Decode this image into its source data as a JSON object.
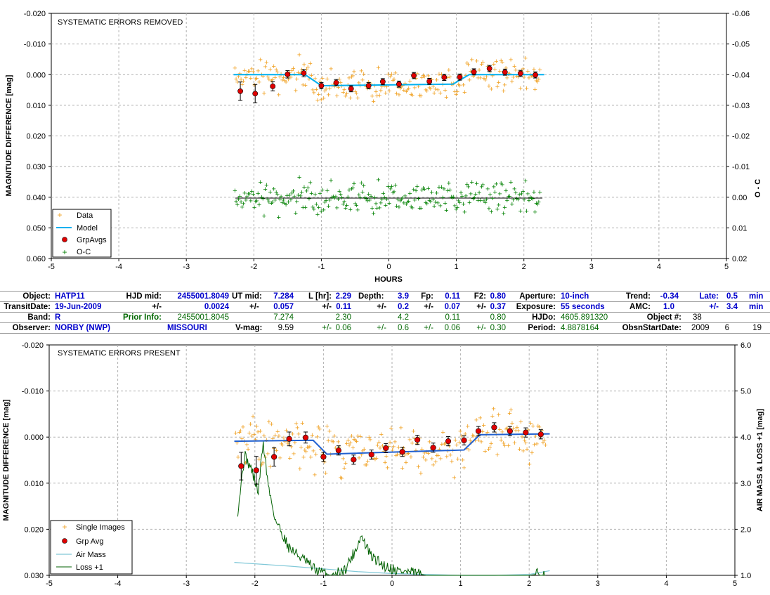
{
  "top_chart": {
    "inner_title": "SYSTEMATIC ERRORS REMOVED",
    "ylabel": "MAGNITUDE DIFFERENCE [mag]",
    "y2label": "O - C",
    "xlabel": "HOURS",
    "y_ticks": [
      "-0.020",
      "-0.010",
      "0.000",
      "0.010",
      "0.020",
      "0.030",
      "0.040",
      "0.050",
      "0.060"
    ],
    "y2_ticks": [
      "-0.06",
      "-0.05",
      "-0.04",
      "-0.03",
      "-0.02",
      "-0.01",
      "0.00",
      "0.01",
      "0.02"
    ],
    "x_ticks": [
      "-5",
      "-4",
      "-3",
      "-2",
      "-1",
      "0",
      "1",
      "2",
      "3",
      "4",
      "5"
    ],
    "legend": [
      "Data",
      "Model",
      "GrpAvgs",
      "O-C"
    ]
  },
  "bottom_chart": {
    "inner_title": "SYSTEMATIC ERRORS PRESENT",
    "ylabel": "MAGNITUDE DIFFERENCE [mag]",
    "y2label": "AIR MASS & LOSS +1 [mag]",
    "y_ticks": [
      "-0.020",
      "-0.010",
      "0.000",
      "0.010",
      "0.020",
      "0.030"
    ],
    "y2_ticks": [
      "6.0",
      "5.0",
      "4.0",
      "3.0",
      "2.0",
      "1.0"
    ],
    "x_ticks": [
      "-5",
      "-4",
      "-3",
      "-2",
      "-1",
      "0",
      "1",
      "2",
      "3",
      "4",
      "5"
    ],
    "legend": [
      "Single Images",
      "Grp Avg",
      "Air Mass",
      "Loss +1"
    ]
  },
  "info": {
    "object_k": "Object:",
    "object_v": "HATP11",
    "hjdmid_k": "HJD mid:",
    "hjdmid_v": "2455001.8049",
    "utmid_k": "UT mid:",
    "utmid_v": "7.284",
    "lhr_k": "L [hr]:",
    "lhr_v": "2.29",
    "depth_k": "Depth:",
    "depth_v": "3.9",
    "fp_k": "Fp:",
    "fp_v": "0.11",
    "f2_k": "F2:",
    "f2_v": "0.80",
    "aperture_k": "Aperture:",
    "aperture_v": "10-inch",
    "trend_k": "Trend:",
    "trend_v": "-0.34",
    "late_k": "Late:",
    "late_v": "0.5",
    "late_u": "min",
    "transit_k": "TransitDate:",
    "transit_v": "19-Jun-2009",
    "pm1": "+/-",
    "hjd_err": "0.0024",
    "pm2": "+/-",
    "ut_err": "0.057",
    "pm3": "+/-",
    "l_err": "0.11",
    "pm4": "+/-",
    "depth_err": "0.2",
    "pm5": "+/-",
    "fp_err": "0.07",
    "pm6": "+/-",
    "f2_err": "0.37",
    "exposure_k": "Exposure:",
    "exposure_v": "55 seconds",
    "amc_k": "AMC:",
    "amc_v": "1.0",
    "pm7": "+/-",
    "amc_err": "3.4",
    "amc_u": "min",
    "band_k": "Band:",
    "band_v": "R",
    "prior_k": "Prior Info:",
    "prior_hjd": "2455001.8045",
    "prior_ut": "7.274",
    "prior_l": "2.30",
    "prior_depth": "4.2",
    "prior_fp": "0.11",
    "prior_f2": "0.80",
    "hjdo_k": "HJDo:",
    "hjdo_v": "4605.891320",
    "objnum_k": "Object #:",
    "objnum_v": "38",
    "observer_k": "Observer:",
    "observer_v": "NORBY (NWP)",
    "location_v": "MISSOURI",
    "vmag_k": "V-mag:",
    "vmag_v": "9.59",
    "pm8": "+/-",
    "vmag_err": "0.06",
    "pm9": "+/-",
    "depth_err2": "0.6",
    "pm10": "+/-",
    "fp_err2": "0.06",
    "pm11": "+/-",
    "f2_err2": "0.30",
    "period_k": "Period:",
    "period_v": "4.8878164",
    "obsstart_k": "ObsnStartDate:",
    "obs_y": "2009",
    "obs_m": "6",
    "obs_d": "19"
  },
  "colors": {
    "data": "#f0a020",
    "model_top": "#00b0f0",
    "model_bottom": "#2060d0",
    "grp": "#e00000",
    "oc": "#008000",
    "airmass": "#80c8d8",
    "loss": "#006000",
    "grid": "#b0b0b0"
  },
  "chart_data": [
    {
      "type": "scatter",
      "title": "SYSTEMATIC ERRORS REMOVED",
      "xlabel": "HOURS",
      "ylabel": "MAGNITUDE DIFFERENCE [mag]",
      "y2label": "O - C",
      "xlim": [
        -5,
        5
      ],
      "ylim": [
        -0.02,
        0.06
      ],
      "y2lim": [
        -0.06,
        0.02
      ],
      "y_inverted": true,
      "grid": true,
      "legend_position": "bottom-left",
      "series": [
        {
          "name": "GrpAvgs",
          "x": [
            -2.2,
            -1.98,
            -1.72,
            -1.5,
            -1.26,
            -1.0,
            -0.78,
            -0.56,
            -0.3,
            -0.09,
            0.15,
            0.37,
            0.6,
            0.82,
            1.05,
            1.26,
            1.49,
            1.72,
            1.95,
            2.17
          ],
          "y": [
            0.0054,
            0.0062,
            0.0038,
            -0.0001,
            -0.0005,
            0.0036,
            0.0026,
            0.0046,
            0.0036,
            0.0023,
            0.0031,
            0.0003,
            0.0022,
            0.0009,
            0.0008,
            -0.0009,
            -0.002,
            -0.0008,
            -0.0004,
            0.0001
          ],
          "yerr": [
            0.003,
            0.003,
            0.0015,
            0.0012,
            0.0012,
            0.001,
            0.001,
            0.001,
            0.001,
            0.001,
            0.001,
            0.001,
            0.001,
            0.001,
            0.001,
            0.001,
            0.001,
            0.001,
            0.001,
            0.001
          ]
        },
        {
          "name": "Model",
          "x": [
            -2.3,
            -1.24,
            -1.0,
            0.95,
            1.19,
            2.3
          ],
          "y": [
            0.0,
            0.0,
            0.0036,
            0.0031,
            0.0,
            0.0
          ]
        }
      ]
    },
    {
      "type": "scatter",
      "title": "SYSTEMATIC ERRORS PRESENT",
      "ylabel": "MAGNITUDE DIFFERENCE [mag]",
      "y2label": "AIR MASS & LOSS +1 [mag]",
      "xlim": [
        -5,
        5
      ],
      "ylim": [
        -0.02,
        0.03
      ],
      "y2lim": [
        1.0,
        6.0
      ],
      "y_inverted": true,
      "grid": true,
      "legend_position": "bottom-left",
      "series": [
        {
          "name": "Grp Avg",
          "x": [
            -2.2,
            -1.98,
            -1.72,
            -1.5,
            -1.26,
            -1.0,
            -0.78,
            -0.56,
            -0.3,
            -0.09,
            0.15,
            0.37,
            0.6,
            0.82,
            1.05,
            1.26,
            1.49,
            1.72,
            1.95,
            2.17
          ],
          "y": [
            0.0063,
            0.0072,
            0.0043,
            0.0004,
            0.0001,
            0.0043,
            0.0029,
            0.0049,
            0.0038,
            0.0024,
            0.0032,
            0.0006,
            0.0023,
            0.0009,
            0.0007,
            -0.0013,
            -0.0021,
            -0.0013,
            -0.001,
            -0.0006
          ],
          "yerr": [
            0.003,
            0.003,
            0.002,
            0.0015,
            0.0012,
            0.001,
            0.001,
            0.001,
            0.001,
            0.001,
            0.001,
            0.001,
            0.001,
            0.001,
            0.001,
            0.001,
            0.001,
            0.001,
            0.001,
            0.001
          ]
        },
        {
          "name": "Model",
          "x": [
            -2.3,
            -1.15,
            -0.95,
            1.05,
            1.28,
            2.3
          ],
          "y": [
            0.0009,
            0.0007,
            0.0037,
            0.0028,
            -0.0005,
            -0.0007
          ]
        },
        {
          "name": "Air Mass",
          "x": [
            -2.3,
            -1.5,
            -1.0,
            -0.5,
            0.0,
            0.5,
            1.0,
            1.5,
            2.0,
            2.3
          ],
          "y": [
            1.28,
            1.2,
            1.14,
            1.08,
            1.04,
            1.02,
            1.0,
            1.0,
            1.02,
            1.1
          ]
        },
        {
          "name": "Loss +1",
          "x": [
            -2.25,
            -2.15,
            -2.05,
            -1.95,
            -1.88,
            -1.8,
            -1.7,
            -1.5,
            -1.3,
            -1.1,
            -0.9,
            -0.7,
            -0.55,
            -0.45,
            -0.4,
            -0.3,
            -0.1,
            0.1,
            0.3,
            0.5,
            1.0,
            2.0,
            2.25
          ],
          "y": [
            2.4,
            3.6,
            3.3,
            2.8,
            3.9,
            2.9,
            2.2,
            1.6,
            1.35,
            1.1,
            1.0,
            1.1,
            1.5,
            1.85,
            1.7,
            1.4,
            1.2,
            1.1,
            1.05,
            1.0,
            1.0,
            1.0,
            1.05
          ]
        }
      ]
    }
  ]
}
